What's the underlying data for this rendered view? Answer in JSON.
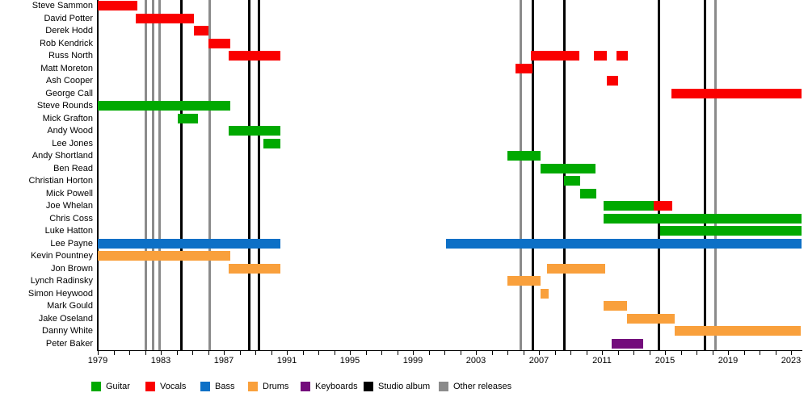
{
  "chart_data": {
    "type": "bar",
    "subtype": "band-members-timeline",
    "title": "",
    "legend_position": "bottom",
    "x_axis": {
      "min": 1979,
      "max": 2023.7,
      "major_ticks": [
        1979,
        1983,
        1987,
        1991,
        1995,
        1999,
        2003,
        2007,
        2011,
        2015,
        2019,
        2023
      ],
      "minor_tick_interval": 1
    },
    "colors": {
      "guitar": "#00a900",
      "vocals": "#fa0000",
      "bass": "#0d70c6",
      "drums": "#f9a03c",
      "keyboards": "#740c7c",
      "studio_album": "#000000",
      "other_releases": "#8b8b8b"
    },
    "members": [
      {
        "name": "Steve Sammon",
        "segments": [
          {
            "role": "vocals",
            "start": 1979.0,
            "end": 1981.5
          }
        ]
      },
      {
        "name": "David Potter",
        "segments": [
          {
            "role": "vocals",
            "start": 1981.4,
            "end": 1985.1
          }
        ]
      },
      {
        "name": "Derek Hodd",
        "segments": [
          {
            "role": "vocals",
            "start": 1985.1,
            "end": 1986.0
          }
        ]
      },
      {
        "name": "Rob Kendrick",
        "segments": [
          {
            "role": "vocals",
            "start": 1986.0,
            "end": 1987.4
          }
        ]
      },
      {
        "name": "Russ North",
        "segments": [
          {
            "role": "vocals",
            "start": 1987.3,
            "end": 1990.6
          },
          {
            "role": "vocals",
            "start": 2006.5,
            "end": 2009.6
          },
          {
            "role": "vocals",
            "start": 2010.5,
            "end": 2011.3
          },
          {
            "role": "vocals",
            "start": 2011.9,
            "end": 2012.6
          }
        ]
      },
      {
        "name": "Matt Moreton",
        "segments": [
          {
            "role": "vocals",
            "start": 2005.5,
            "end": 2006.6
          }
        ]
      },
      {
        "name": "Ash Cooper",
        "segments": [
          {
            "role": "vocals",
            "start": 2011.3,
            "end": 2012.0
          }
        ]
      },
      {
        "name": "George Call",
        "segments": [
          {
            "role": "vocals",
            "start": 2015.4,
            "end": 2023.7
          }
        ]
      },
      {
        "name": "Steve Rounds",
        "segments": [
          {
            "role": "guitar",
            "start": 1979.0,
            "end": 1987.4
          }
        ]
      },
      {
        "name": "Mick Grafton",
        "segments": [
          {
            "role": "guitar",
            "start": 1984.1,
            "end": 1985.4
          }
        ]
      },
      {
        "name": "Andy Wood",
        "segments": [
          {
            "role": "guitar",
            "start": 1987.3,
            "end": 1990.6
          }
        ]
      },
      {
        "name": "Lee Jones",
        "segments": [
          {
            "role": "guitar",
            "start": 1989.5,
            "end": 1990.6
          }
        ]
      },
      {
        "name": "Andy Shortland",
        "segments": [
          {
            "role": "guitar",
            "start": 2005.0,
            "end": 2007.1
          }
        ]
      },
      {
        "name": "Ben Read",
        "segments": [
          {
            "role": "guitar",
            "start": 2007.1,
            "end": 2010.6
          }
        ]
      },
      {
        "name": "Christian Horton",
        "segments": [
          {
            "role": "guitar",
            "start": 2008.6,
            "end": 2009.6
          }
        ]
      },
      {
        "name": "Mick Powell",
        "segments": [
          {
            "role": "guitar",
            "start": 2009.6,
            "end": 2010.6
          }
        ]
      },
      {
        "name": "Joe Whelan",
        "segments": [
          {
            "role": "guitar",
            "start": 2011.1,
            "end": 2014.3
          },
          {
            "role": "vocals",
            "start": 2014.3,
            "end": 2015.5
          }
        ]
      },
      {
        "name": "Chris Coss",
        "segments": [
          {
            "role": "guitar",
            "start": 2011.1,
            "end": 2023.7
          }
        ]
      },
      {
        "name": "Luke Hatton",
        "segments": [
          {
            "role": "guitar",
            "start": 2014.7,
            "end": 2023.7
          }
        ]
      },
      {
        "name": "Lee Payne",
        "segments": [
          {
            "role": "bass",
            "start": 1979.0,
            "end": 1990.6
          },
          {
            "role": "bass",
            "start": 2001.1,
            "end": 2023.7
          }
        ]
      },
      {
        "name": "Kevin Pountney",
        "segments": [
          {
            "role": "drums",
            "start": 1979.0,
            "end": 1987.4
          }
        ]
      },
      {
        "name": "Jon Brown",
        "segments": [
          {
            "role": "drums",
            "start": 1987.3,
            "end": 1990.6
          },
          {
            "role": "drums",
            "start": 2007.5,
            "end": 2011.2
          }
        ]
      },
      {
        "name": "Lynch Radinsky",
        "segments": [
          {
            "role": "drums",
            "start": 2005.0,
            "end": 2007.1
          }
        ]
      },
      {
        "name": "Simon Heywood",
        "segments": [
          {
            "role": "drums",
            "start": 2007.1,
            "end": 2007.6
          }
        ]
      },
      {
        "name": "Mark Gould",
        "segments": [
          {
            "role": "drums",
            "start": 2011.1,
            "end": 2012.6
          }
        ]
      },
      {
        "name": "Jake Oseland",
        "segments": [
          {
            "role": "drums",
            "start": 2012.6,
            "end": 2015.6
          }
        ]
      },
      {
        "name": "Danny White",
        "segments": [
          {
            "role": "drums",
            "start": 2015.6,
            "end": 2023.6
          }
        ]
      },
      {
        "name": "Peter Baker",
        "segments": [
          {
            "role": "keyboards",
            "start": 2011.6,
            "end": 2013.6
          }
        ]
      }
    ],
    "releases": {
      "studio_albums": [
        1984.3,
        1988.6,
        1989.2,
        2006.6,
        2008.6,
        2014.6,
        2017.5
      ],
      "other_releases": [
        1982.0,
        1982.5,
        1982.9,
        1986.1,
        2005.8,
        2018.2
      ]
    },
    "legend": [
      {
        "label": "Guitar",
        "color_key": "guitar"
      },
      {
        "label": "Vocals",
        "color_key": "vocals"
      },
      {
        "label": "Bass",
        "color_key": "bass"
      },
      {
        "label": "Drums",
        "color_key": "drums"
      },
      {
        "label": "Keyboards",
        "color_key": "keyboards"
      },
      {
        "label": "Studio album",
        "color_key": "studio_album"
      },
      {
        "label": "Other releases",
        "color_key": "other_releases"
      }
    ]
  }
}
